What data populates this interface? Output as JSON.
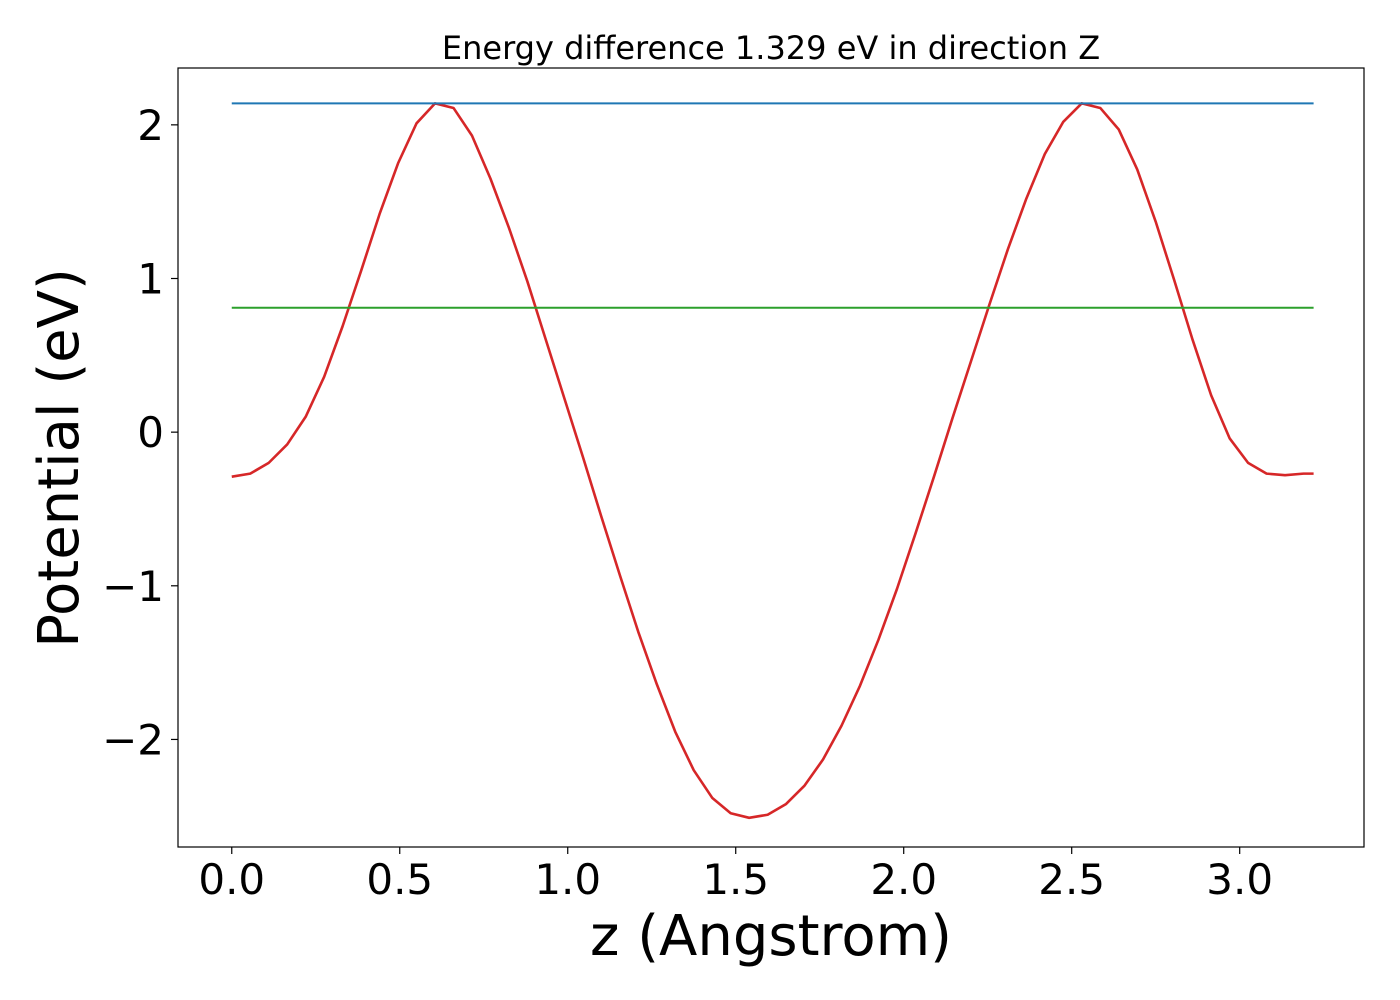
{
  "chart_data": {
    "type": "line",
    "title": "Energy difference 1.329 eV in direction Z",
    "xlabel": "z (Angstrom)",
    "ylabel": "Potential (eV)",
    "xlim": [
      -0.16,
      3.37
    ],
    "ylim": [
      -2.7,
      2.37
    ],
    "xticks": [
      0.0,
      0.5,
      1.0,
      1.5,
      2.0,
      2.5,
      3.0
    ],
    "xtick_labels": [
      "0.0",
      "0.5",
      "1.0",
      "1.5",
      "2.0",
      "2.5",
      "3.0"
    ],
    "yticks": [
      -2,
      -1,
      0,
      1,
      2
    ],
    "ytick_labels": [
      "−2",
      "−1",
      "0",
      "1",
      "2"
    ],
    "grid": false,
    "series": [
      {
        "color": "#d62728",
        "x": [
          0.0,
          0.055,
          0.11,
          0.165,
          0.22,
          0.275,
          0.33,
          0.385,
          0.44,
          0.495,
          0.55,
          0.605,
          0.66,
          0.715,
          0.77,
          0.825,
          0.88,
          0.935,
          0.99,
          1.045,
          1.1,
          1.155,
          1.21,
          1.265,
          1.32,
          1.375,
          1.43,
          1.485,
          1.54,
          1.595,
          1.65,
          1.705,
          1.76,
          1.815,
          1.87,
          1.925,
          1.98,
          2.035,
          2.09,
          2.145,
          2.2,
          2.255,
          2.31,
          2.365,
          2.42,
          2.475,
          2.53,
          2.585,
          2.64,
          2.695,
          2.75,
          2.805,
          2.86,
          2.915,
          2.97,
          3.025,
          3.08,
          3.135,
          3.19,
          3.22
        ],
        "y": [
          -0.29,
          -0.27,
          -0.2,
          -0.08,
          0.1,
          0.36,
          0.69,
          1.05,
          1.42,
          1.75,
          2.01,
          2.14,
          2.11,
          1.93,
          1.65,
          1.33,
          0.98,
          0.6,
          0.22,
          -0.16,
          -0.55,
          -0.93,
          -1.3,
          -1.64,
          -1.95,
          -2.2,
          -2.38,
          -2.48,
          -2.51,
          -2.49,
          -2.42,
          -2.3,
          -2.13,
          -1.91,
          -1.65,
          -1.35,
          -1.02,
          -0.66,
          -0.29,
          0.09,
          0.46,
          0.83,
          1.19,
          1.52,
          1.81,
          2.02,
          2.14,
          2.11,
          1.97,
          1.71,
          1.37,
          0.99,
          0.6,
          0.24,
          -0.04,
          -0.2,
          -0.27,
          -0.28,
          -0.27,
          -0.27
        ]
      },
      {
        "color": "#1f77b4",
        "x": [
          0.0,
          3.22
        ],
        "y": [
          2.14,
          2.14
        ]
      },
      {
        "color": "#2ca02c",
        "x": [
          0.0,
          3.22
        ],
        "y": [
          0.81,
          0.81
        ]
      }
    ]
  }
}
